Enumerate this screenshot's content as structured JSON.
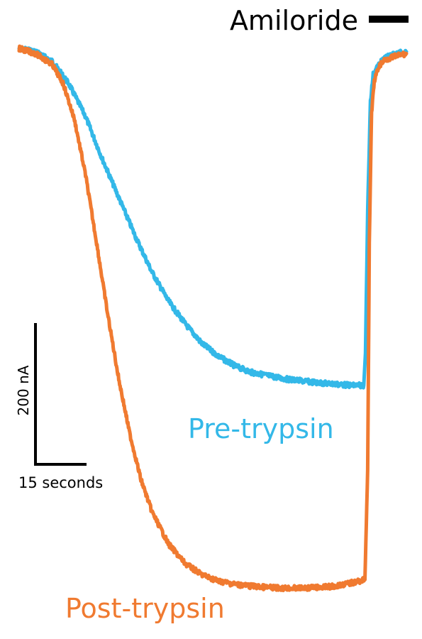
{
  "chart_data": {
    "type": "line",
    "title": "",
    "xlabel": "",
    "ylabel": "",
    "x_unit_ms": "seconds",
    "annotation": {
      "label": "Amiloride",
      "color": "#000000"
    },
    "scale_bar": {
      "y_value": 200,
      "y_label": "200 nA",
      "x_value": 15,
      "x_label": "15 seconds"
    },
    "xlim": [
      0,
      70
    ],
    "ylim": [
      -860,
      20
    ],
    "series": [
      {
        "name": "Pre-trypsin",
        "color": "#33b8e8",
        "x": [
          0,
          3,
          6,
          9,
          12,
          15,
          18,
          21,
          24,
          27,
          30,
          33,
          36,
          39,
          42,
          45,
          48,
          51,
          54,
          57,
          60,
          62.3,
          62.6,
          63,
          63.5,
          64,
          65,
          66,
          68,
          70
        ],
        "y": [
          0,
          -5,
          -20,
          -55,
          -105,
          -170,
          -230,
          -290,
          -345,
          -390,
          -425,
          -455,
          -475,
          -490,
          -500,
          -505,
          -510,
          -513,
          -516,
          -518,
          -520,
          -520,
          -470,
          -250,
          -80,
          -40,
          -25,
          -15,
          -8,
          -5
        ]
      },
      {
        "name": "Post-trypsin",
        "color": "#f07a30",
        "x": [
          0,
          3,
          6,
          8,
          10,
          12,
          14,
          16,
          18,
          20,
          22,
          24,
          27,
          30,
          33,
          36,
          39,
          42,
          45,
          48,
          51,
          54,
          57,
          60,
          62.5,
          63.0,
          63.3,
          63.7,
          64.2,
          65,
          66,
          68,
          70
        ],
        "y": [
          0,
          -8,
          -25,
          -55,
          -110,
          -195,
          -300,
          -410,
          -510,
          -595,
          -665,
          -715,
          -765,
          -795,
          -812,
          -822,
          -827,
          -830,
          -832,
          -833,
          -833,
          -832,
          -830,
          -825,
          -820,
          -650,
          -300,
          -100,
          -50,
          -28,
          -18,
          -12,
          -8
        ]
      }
    ]
  }
}
